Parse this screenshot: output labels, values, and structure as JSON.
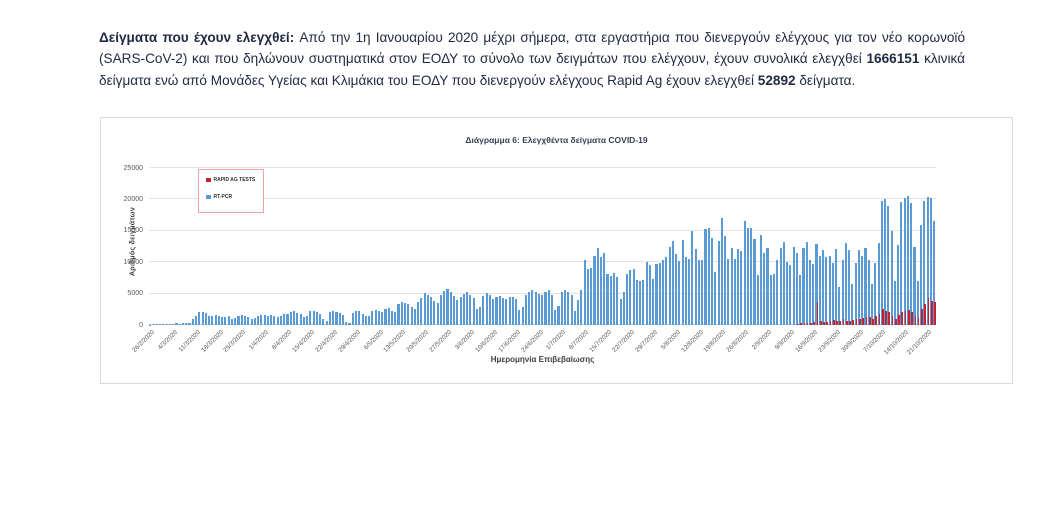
{
  "paragraph": {
    "segments": [
      {
        "text": "Δείγματα που έχουν ελεγχθεί: ",
        "bold": true
      },
      {
        "text": "Από την 1η Ιανουαρίου 2020 μέχρι σήμερα, στα εργαστήρια που διενεργούν ελέγχους για τον νέο κορωνοϊό (SARS-CoV-2) και που δηλώνουν συστηματικά στον ΕΟΔΥ το σύνολο των δειγμάτων που ελέγχουν, έχουν συνολικά ελεγχθεί ",
        "bold": false
      },
      {
        "text": "1666151",
        "bold": true
      },
      {
        "text": " κλινικά δείγματα ενώ από Μονάδες Υγείας και Κλιμάκια του ΕΟΔΥ που διενεργούν ελέγχους Rapid Ag έχουν ελεγχθεί ",
        "bold": false
      },
      {
        "text": "52892",
        "bold": true
      },
      {
        "text": " δείγματα.",
        "bold": false
      }
    ]
  },
  "chart_data": {
    "type": "bar",
    "title": "Διάγραμμα 6: Ελεγχθέντα δείγματα COVID-19",
    "xlabel": "Ημερομηνία Επιβεβαίωσης",
    "ylabel": "Αριθμός δειγμάτων",
    "ylim": [
      0,
      25000
    ],
    "yticks": [
      0,
      5000,
      10000,
      15000,
      20000,
      25000
    ],
    "grid": true,
    "legend_position": "top-left",
    "legend_border_color": "#eda4a4",
    "x_tick_labels": [
      "26/2/2020",
      "4/3/2020",
      "11/3/2020",
      "18/3/2020",
      "25/3/2020",
      "1/4/2020",
      "8/4/2020",
      "15/4/2020",
      "22/4/2020",
      "29/4/2020",
      "6/5/2020",
      "13/5/2020",
      "20/5/2020",
      "27/5/2020",
      "3/6/2020",
      "10/6/2020",
      "17/6/2020",
      "24/6/2020",
      "1/7/2020",
      "8/7/2020",
      "15/7/2020",
      "22/7/2020",
      "29/7/2020",
      "5/8/2020",
      "12/8/2020",
      "19/8/2020",
      "26/8/2020",
      "2/9/2020",
      "9/9/2020",
      "16/9/2020",
      "23/9/2020",
      "30/9/2020",
      "7/10/2020",
      "14/10/2020",
      "21/10/2020"
    ],
    "x_tick_interval_days": 7,
    "series": [
      {
        "name": "RAPID AG TESTS",
        "color": "#c2232e",
        "values": [
          0,
          0,
          0,
          0,
          0,
          0,
          0,
          0,
          0,
          0,
          0,
          0,
          0,
          0,
          0,
          0,
          0,
          0,
          0,
          0,
          0,
          0,
          0,
          0,
          0,
          0,
          0,
          0,
          0,
          0,
          0,
          0,
          0,
          0,
          0,
          0,
          0,
          0,
          0,
          0,
          0,
          0,
          0,
          0,
          0,
          0,
          0,
          0,
          0,
          0,
          0,
          0,
          0,
          0,
          0,
          0,
          0,
          0,
          0,
          0,
          0,
          0,
          0,
          0,
          0,
          0,
          0,
          0,
          0,
          0,
          0,
          0,
          0,
          0,
          0,
          0,
          0,
          0,
          0,
          0,
          0,
          0,
          0,
          0,
          0,
          0,
          0,
          0,
          0,
          0,
          0,
          0,
          0,
          0,
          0,
          0,
          0,
          0,
          0,
          0,
          0,
          0,
          0,
          0,
          0,
          0,
          0,
          0,
          0,
          0,
          0,
          0,
          0,
          0,
          0,
          0,
          0,
          0,
          0,
          0,
          0,
          0,
          0,
          0,
          0,
          0,
          0,
          0,
          0,
          0,
          0,
          0,
          0,
          0,
          0,
          0,
          0,
          0,
          0,
          0,
          0,
          0,
          0,
          0,
          0,
          0,
          0,
          0,
          0,
          0,
          0,
          0,
          0,
          0,
          0,
          0,
          0,
          0,
          0,
          0,
          0,
          0,
          0,
          0,
          0,
          0,
          0,
          0,
          0,
          0,
          0,
          0,
          0,
          0,
          0,
          0,
          0,
          0,
          0,
          0,
          0,
          0,
          0,
          0,
          0,
          0,
          0,
          0,
          0,
          0,
          0,
          0,
          0,
          0,
          0,
          0,
          0,
          0,
          200,
          300,
          250,
          400,
          350,
          500,
          3600,
          600,
          450,
          550,
          700,
          800,
          600,
          700,
          900,
          700,
          600,
          800,
          900,
          1000,
          1100,
          1300,
          1200,
          900,
          1400,
          1800,
          2600,
          2300,
          2100,
          1500,
          900,
          1600,
          2000,
          2200,
          2400,
          2100,
          1500,
          1100,
          2600,
          3400,
          4300,
          3800,
          3600
        ]
      },
      {
        "name": "RT-PCR",
        "color": "#5b9bd5",
        "values": [
          60,
          90,
          120,
          150,
          180,
          210,
          190,
          230,
          260,
          240,
          280,
          320,
          380,
          900,
          1400,
          2000,
          2100,
          1900,
          1500,
          1450,
          1600,
          1500,
          1300,
          1250,
          1400,
          900,
          1100,
          1500,
          1600,
          1450,
          1350,
          1000,
          1150,
          1500,
          1600,
          1550,
          1500,
          1650,
          1450,
          1300,
          1500,
          1700,
          1800,
          2100,
          2200,
          1900,
          1700,
          1300,
          1500,
          2300,
          2200,
          2000,
          1800,
          900,
          700,
          2100,
          2250,
          2100,
          1900,
          1600,
          450,
          400,
          1900,
          2200,
          2300,
          1800,
          1500,
          1400,
          2200,
          2400,
          2300,
          2100,
          2500,
          2700,
          2300,
          2100,
          3300,
          3700,
          3500,
          3400,
          2900,
          2600,
          3600,
          4300,
          5100,
          4800,
          4400,
          3800,
          3500,
          4700,
          5400,
          5800,
          5200,
          4600,
          4000,
          4400,
          4900,
          5200,
          4800,
          4300,
          2500,
          2900,
          4600,
          5100,
          4700,
          4200,
          4400,
          4600,
          4300,
          4100,
          4500,
          4400,
          4200,
          2400,
          2900,
          4800,
          5200,
          5500,
          5300,
          4900,
          4700,
          5200,
          5600,
          4800,
          2400,
          3000,
          5300,
          5500,
          5200,
          4800,
          2300,
          4000,
          5600,
          10400,
          8900,
          9000,
          11000,
          12300,
          10900,
          11500,
          8100,
          7800,
          8300,
          7700,
          4100,
          5200,
          8200,
          8700,
          8900,
          7200,
          7000,
          7100,
          10000,
          9600,
          7300,
          9700,
          9900,
          10300,
          10900,
          12500,
          13400,
          11300,
          10200,
          13600,
          10900,
          10500,
          14900,
          12100,
          10400,
          10300,
          15300,
          15400,
          13800,
          8500,
          13300,
          17100,
          14100,
          10500,
          12300,
          10500,
          12100,
          11800,
          16600,
          15400,
          15400,
          13700,
          8000,
          14300,
          11400,
          12200,
          7900,
          8100,
          10400,
          12300,
          13200,
          10100,
          9600,
          12500,
          11400,
          8000,
          12200,
          13200,
          10300,
          9700,
          12900,
          11000,
          12000,
          10800,
          11000,
          9800,
          12100,
          6100,
          10400,
          13000,
          11900,
          6600,
          9800,
          12000,
          11000,
          12200,
          10400,
          6600,
          9800,
          13000,
          19800,
          20100,
          19000,
          15000,
          7000,
          12800,
          19600,
          20300,
          20500,
          19500,
          12500,
          7000,
          16000,
          19800,
          20400,
          20200,
          16500
        ]
      }
    ]
  }
}
